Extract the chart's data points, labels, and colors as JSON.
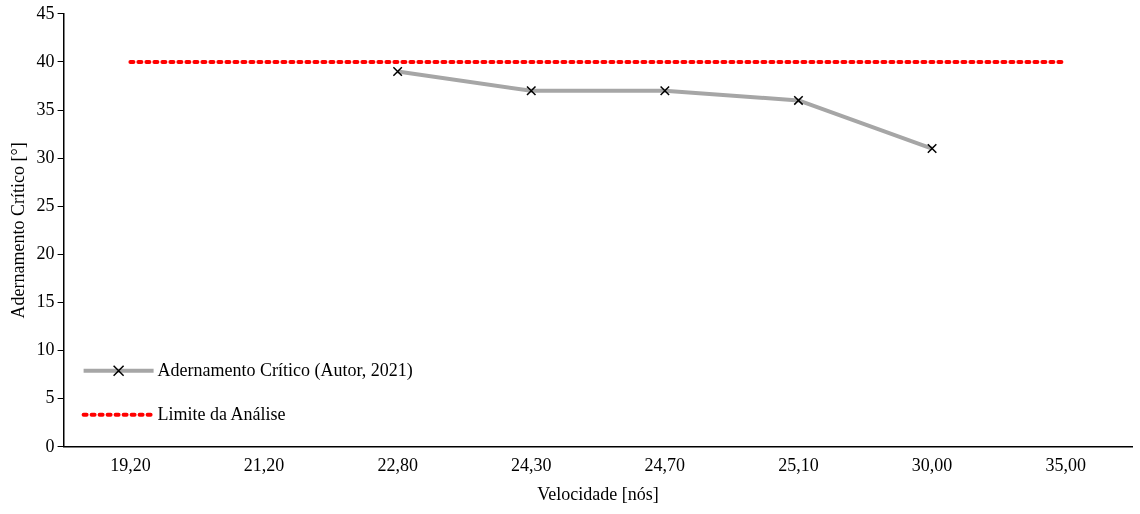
{
  "chart_data": {
    "type": "line",
    "xlabel": "Velocidade [nós]",
    "ylabel": "Adernamento Crítico [°]",
    "categories": [
      "19,20",
      "21,20",
      "22,80",
      "24,30",
      "24,70",
      "25,10",
      "30,00",
      "35,00"
    ],
    "series": [
      {
        "name": "Adernamento Crítico (Autor, 2021)",
        "color": "#a6a6a6",
        "marker": "cross",
        "line_style": "solid",
        "values": [
          null,
          null,
          39,
          37,
          37,
          36,
          31,
          null
        ]
      },
      {
        "name": "Limite da Análise",
        "color": "#ff0000",
        "marker": "none",
        "line_style": "dotted",
        "values": [
          40,
          40,
          40,
          40,
          40,
          40,
          40,
          40
        ]
      }
    ],
    "ylim": [
      0,
      45
    ],
    "yticks": [
      0,
      5,
      10,
      15,
      20,
      25,
      30,
      35,
      40,
      45
    ],
    "grid": false,
    "legend": "bottom left"
  }
}
